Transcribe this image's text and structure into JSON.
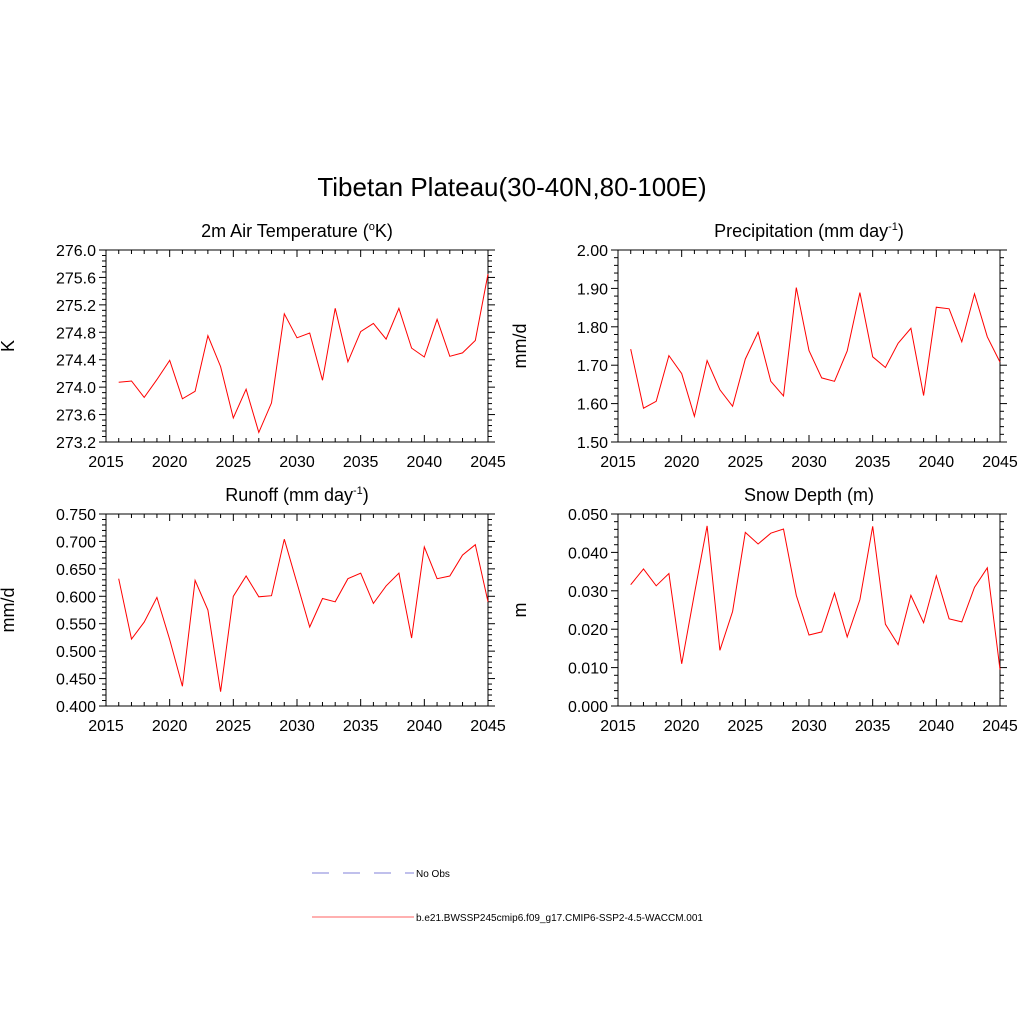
{
  "figure": {
    "title": "Tibetan Plateau(30-40N,80-100E)"
  },
  "legend": [
    {
      "label": "No Obs",
      "color": "#9a9ae0",
      "dash": true
    },
    {
      "label": "b.e21.BWSSP245cmip6.f09_g17.CMIP6-SSP2-4.5-WACCM.001",
      "color": "#ff8080",
      "dash": false
    }
  ],
  "chart_data": [
    {
      "type": "line",
      "title": "2m Air Temperature (",
      "title_sup": "o",
      "title_after": "K)",
      "ylabel": "K",
      "xlim": [
        2015,
        2045
      ],
      "ylim": [
        273.2,
        276.0
      ],
      "xticks": [
        "2015",
        "2020",
        "2025",
        "2030",
        "2035",
        "2040",
        "2045"
      ],
      "yticks": [
        "273.2",
        "273.6",
        "274.0",
        "274.4",
        "274.8",
        "275.2",
        "275.6",
        "276.0"
      ],
      "color": "#ff0000",
      "x": [
        2016,
        2017,
        2018,
        2019,
        2020,
        2021,
        2022,
        2023,
        2024,
        2025,
        2026,
        2027,
        2028,
        2029,
        2030,
        2031,
        2032,
        2033,
        2034,
        2035,
        2036,
        2037,
        2038,
        2039,
        2040,
        2041,
        2042,
        2043,
        2044,
        2045
      ],
      "y": [
        274.07,
        274.09,
        273.85,
        274.11,
        274.39,
        273.83,
        273.94,
        274.75,
        274.3,
        273.55,
        273.97,
        273.34,
        273.77,
        275.07,
        274.72,
        274.79,
        274.1,
        275.15,
        274.37,
        274.81,
        274.93,
        274.7,
        275.15,
        274.57,
        274.44,
        274.99,
        274.45,
        274.5,
        274.68,
        275.65
      ]
    },
    {
      "type": "line",
      "title": "Precipitation (mm day",
      "title_sup": "-1",
      "title_after": ")",
      "ylabel": "mm/d",
      "xlim": [
        2015,
        2045
      ],
      "ylim": [
        1.5,
        2.0
      ],
      "xticks": [
        "2015",
        "2020",
        "2025",
        "2030",
        "2035",
        "2040",
        "2045"
      ],
      "yticks": [
        "1.50",
        "1.60",
        "1.70",
        "1.80",
        "1.90",
        "2.00"
      ],
      "color": "#ff0000",
      "x": [
        2016,
        2017,
        2018,
        2019,
        2020,
        2021,
        2022,
        2023,
        2024,
        2025,
        2026,
        2027,
        2028,
        2029,
        2030,
        2031,
        2032,
        2033,
        2034,
        2035,
        2036,
        2037,
        2038,
        2039,
        2040,
        2041,
        2042,
        2043,
        2044,
        2045
      ],
      "y": [
        1.742,
        1.588,
        1.606,
        1.725,
        1.678,
        1.567,
        1.712,
        1.636,
        1.593,
        1.716,
        1.786,
        1.658,
        1.62,
        1.902,
        1.738,
        1.667,
        1.658,
        1.737,
        1.889,
        1.722,
        1.694,
        1.757,
        1.796,
        1.621,
        1.851,
        1.847,
        1.761,
        1.886,
        1.774,
        1.708
      ]
    },
    {
      "type": "line",
      "title": "Runoff (mm day",
      "title_sup": "-1",
      "title_after": ")",
      "ylabel": "mm/d",
      "xlim": [
        2015,
        2045
      ],
      "ylim": [
        0.4,
        0.75
      ],
      "xticks": [
        "2015",
        "2020",
        "2025",
        "2030",
        "2035",
        "2040",
        "2045"
      ],
      "yticks": [
        "0.400",
        "0.450",
        "0.500",
        "0.550",
        "0.600",
        "0.650",
        "0.700",
        "0.750"
      ],
      "color": "#ff0000",
      "x": [
        2016,
        2017,
        2018,
        2019,
        2020,
        2021,
        2022,
        2023,
        2024,
        2025,
        2026,
        2027,
        2028,
        2029,
        2030,
        2031,
        2032,
        2033,
        2034,
        2035,
        2036,
        2037,
        2038,
        2039,
        2040,
        2041,
        2042,
        2043,
        2044,
        2045
      ],
      "y": [
        0.632,
        0.522,
        0.553,
        0.598,
        0.521,
        0.436,
        0.629,
        0.575,
        0.426,
        0.6,
        0.637,
        0.599,
        0.601,
        0.704,
        0.624,
        0.544,
        0.596,
        0.59,
        0.632,
        0.642,
        0.587,
        0.619,
        0.642,
        0.524,
        0.69,
        0.632,
        0.637,
        0.675,
        0.694,
        0.59
      ]
    },
    {
      "type": "line",
      "title": "Snow Depth (m)",
      "title_sup": "",
      "title_after": "",
      "ylabel": "m",
      "xlim": [
        2015,
        2045
      ],
      "ylim": [
        0.0,
        0.05
      ],
      "xticks": [
        "2015",
        "2020",
        "2025",
        "2030",
        "2035",
        "2040",
        "2045"
      ],
      "yticks": [
        "0.000",
        "0.010",
        "0.020",
        "0.030",
        "0.040",
        "0.050"
      ],
      "color": "#ff0000",
      "x": [
        2016,
        2017,
        2018,
        2019,
        2020,
        2021,
        2022,
        2023,
        2024,
        2025,
        2026,
        2027,
        2028,
        2029,
        2030,
        2031,
        2032,
        2033,
        2034,
        2035,
        2036,
        2037,
        2038,
        2039,
        2040,
        2041,
        2042,
        2043,
        2044,
        2045
      ],
      "y": [
        0.0316,
        0.0357,
        0.0313,
        0.0345,
        0.011,
        0.0292,
        0.0469,
        0.0145,
        0.0246,
        0.0452,
        0.0422,
        0.045,
        0.0461,
        0.0288,
        0.0185,
        0.0193,
        0.0294,
        0.018,
        0.0277,
        0.0468,
        0.0213,
        0.016,
        0.0288,
        0.0217,
        0.0339,
        0.0227,
        0.0219,
        0.0309,
        0.036,
        0.0095
      ]
    }
  ]
}
